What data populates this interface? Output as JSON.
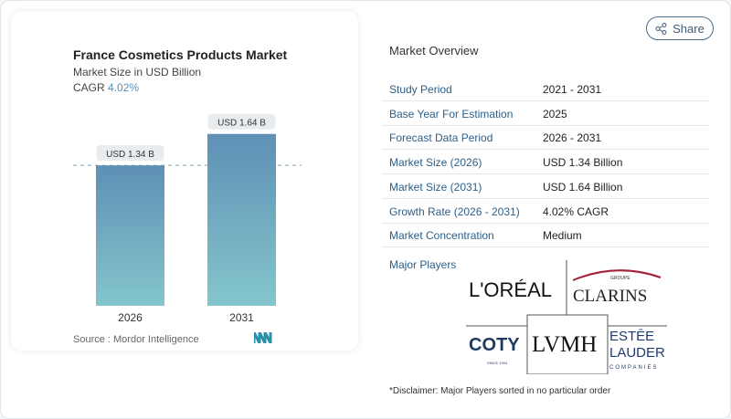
{
  "share_label": "Share",
  "chart_data": {
    "type": "bar",
    "title": "France Cosmetics Products Market",
    "subtitle": "Market Size in USD Billion",
    "cagr_label": "CAGR",
    "cagr_value": "4.02%",
    "categories": [
      "2026",
      "2031"
    ],
    "values": [
      1.34,
      1.64
    ],
    "data_labels": [
      "USD 1.34 B",
      "USD 1.64 B"
    ],
    "ylim": [
      0,
      2.9
    ],
    "grid": false,
    "reference_line": "dashed at 2026 value",
    "colors": [
      "#5e90b5",
      "#84c6cc"
    ],
    "source": "Source :  Mordor Intelligence"
  },
  "overview": {
    "title": "Market Overview",
    "rows": [
      {
        "k": "Study Period",
        "v": "2021 - 2031"
      },
      {
        "k": "Base Year For Estimation",
        "v": "2025"
      },
      {
        "k": "Forecast Data Period",
        "v": "2026 - 2031"
      },
      {
        "k": "Market Size (2026)",
        "v": "USD 1.34 Billion"
      },
      {
        "k": "Market Size (2031)",
        "v": "USD 1.64 Billion"
      },
      {
        "k": "Growth Rate (2026 - 2031)",
        "v": "4.02% CAGR"
      },
      {
        "k": "Market Concentration",
        "v": "Medium"
      }
    ],
    "major_players_label": "Major Players",
    "players": [
      "L'ORÉAL",
      "GROUPE CLARINS",
      "COTY SINCE 1904",
      "LVMH",
      "ESTĒE LAUDER COMPANIES"
    ],
    "disclaimer": "*Disclaimer: Major Players sorted in no particular order"
  }
}
